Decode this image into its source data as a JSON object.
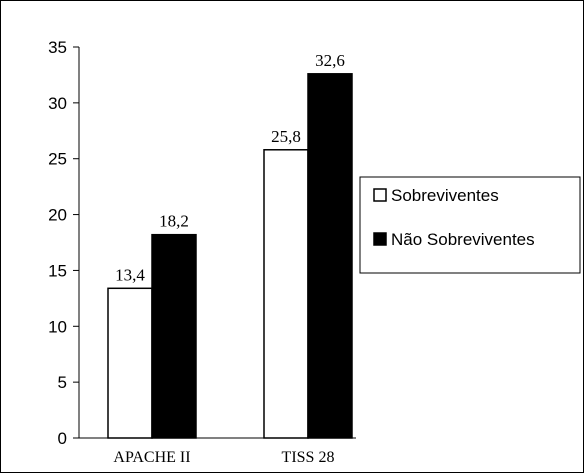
{
  "chart_data": {
    "type": "bar",
    "categories": [
      "APACHE II",
      "TISS 28"
    ],
    "series": [
      {
        "name": "Sobreviventes",
        "values": [
          13.4,
          25.8
        ],
        "value_labels": [
          "13,4",
          "25,8"
        ],
        "color": "#ffffff"
      },
      {
        "name": "Não Sobreviventes",
        "values": [
          18.2,
          32.6
        ],
        "value_labels": [
          "18,2",
          "32,6"
        ],
        "color": "#000000"
      }
    ],
    "title": "",
    "xlabel": "",
    "ylabel": "",
    "ylim": [
      0,
      35
    ],
    "yticks": [
      "0",
      "5",
      "10",
      "15",
      "20",
      "25",
      "30",
      "35"
    ],
    "grid": false,
    "legend_position": "right"
  }
}
